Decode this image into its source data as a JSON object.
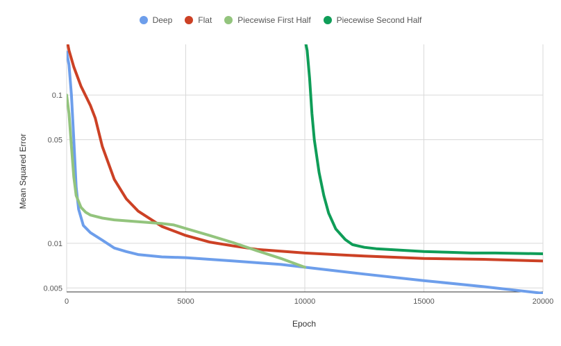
{
  "chart_data": {
    "type": "line",
    "title": "",
    "xlabel": "Epoch",
    "ylabel": "Mean Squared Error",
    "xlim": [
      0,
      20000
    ],
    "ylim": [
      0.0047,
      0.22
    ],
    "yscale": "log",
    "grid": true,
    "legend_position": "top",
    "x_ticks": [
      0,
      5000,
      10000,
      15000,
      20000
    ],
    "x_tick_labels": [
      "0",
      "5000",
      "10000",
      "15000",
      "20000"
    ],
    "y_ticks": [
      0.005,
      0.01,
      0.05,
      0.1
    ],
    "y_tick_labels": [
      "0.005",
      "0.01",
      "0.05",
      "0.1"
    ],
    "series": [
      {
        "name": "Deep",
        "color": "#6d9eeb",
        "x": [
          0,
          100,
          200,
          300,
          400,
          500,
          700,
          1000,
          1500,
          2000,
          2500,
          3000,
          4000,
          5000,
          7000,
          9000,
          10000,
          12500,
          15000,
          17500,
          20000
        ],
        "y": [
          0.195,
          0.16,
          0.1,
          0.05,
          0.024,
          0.017,
          0.0132,
          0.0118,
          0.0105,
          0.0093,
          0.0088,
          0.0084,
          0.0081,
          0.008,
          0.0076,
          0.0072,
          0.0069,
          0.0062,
          0.0056,
          0.0051,
          0.0046
        ]
      },
      {
        "name": "Flat",
        "color": "#cc4125",
        "x": [
          0,
          100,
          300,
          600,
          1000,
          1200,
          1500,
          2000,
          2500,
          3000,
          4000,
          5000,
          6000,
          7000,
          8000,
          10000,
          12500,
          15000,
          17500,
          20000
        ],
        "y": [
          0.24,
          0.2,
          0.155,
          0.115,
          0.085,
          0.07,
          0.045,
          0.027,
          0.02,
          0.0165,
          0.013,
          0.0113,
          0.0102,
          0.0096,
          0.0091,
          0.0086,
          0.0082,
          0.0079,
          0.0078,
          0.0076
        ]
      },
      {
        "name": "Piecewise First Half",
        "color": "#93c47d",
        "x": [
          0,
          100,
          200,
          300,
          400,
          600,
          800,
          1000,
          1500,
          2000,
          3000,
          4000,
          4500,
          5000,
          6000,
          7000,
          8000,
          9000,
          10000
        ],
        "y": [
          0.1,
          0.075,
          0.045,
          0.028,
          0.021,
          0.0175,
          0.0162,
          0.0155,
          0.0148,
          0.0144,
          0.014,
          0.0136,
          0.0133,
          0.0126,
          0.0113,
          0.0101,
          0.0089,
          0.0079,
          0.0069
        ]
      },
      {
        "name": "Piecewise Second Half",
        "color": "#0f9d58",
        "x": [
          10000,
          10100,
          10200,
          10300,
          10400,
          10600,
          10800,
          11000,
          11300,
          11700,
          12000,
          12500,
          13000,
          14000,
          15000,
          16000,
          17000,
          18000,
          20000
        ],
        "y": [
          0.24,
          0.2,
          0.13,
          0.075,
          0.05,
          0.03,
          0.021,
          0.016,
          0.0125,
          0.0106,
          0.0098,
          0.0094,
          0.0092,
          0.009,
          0.0088,
          0.0087,
          0.0086,
          0.0086,
          0.0085
        ]
      }
    ]
  }
}
